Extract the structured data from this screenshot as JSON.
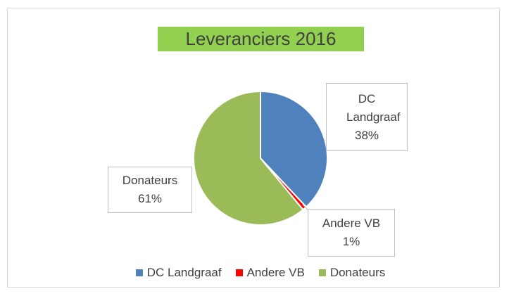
{
  "chart_data": {
    "type": "pie",
    "title": "Leveranciers 2016",
    "categories": [
      "DC Landgraaf",
      "Andere VB",
      "Donateurs"
    ],
    "values": [
      38,
      1,
      61
    ],
    "value_labels": [
      "38%",
      "1%",
      "61%"
    ],
    "colors": [
      "#4f81bd",
      "#ff0000",
      "#9bbb59"
    ]
  }
}
